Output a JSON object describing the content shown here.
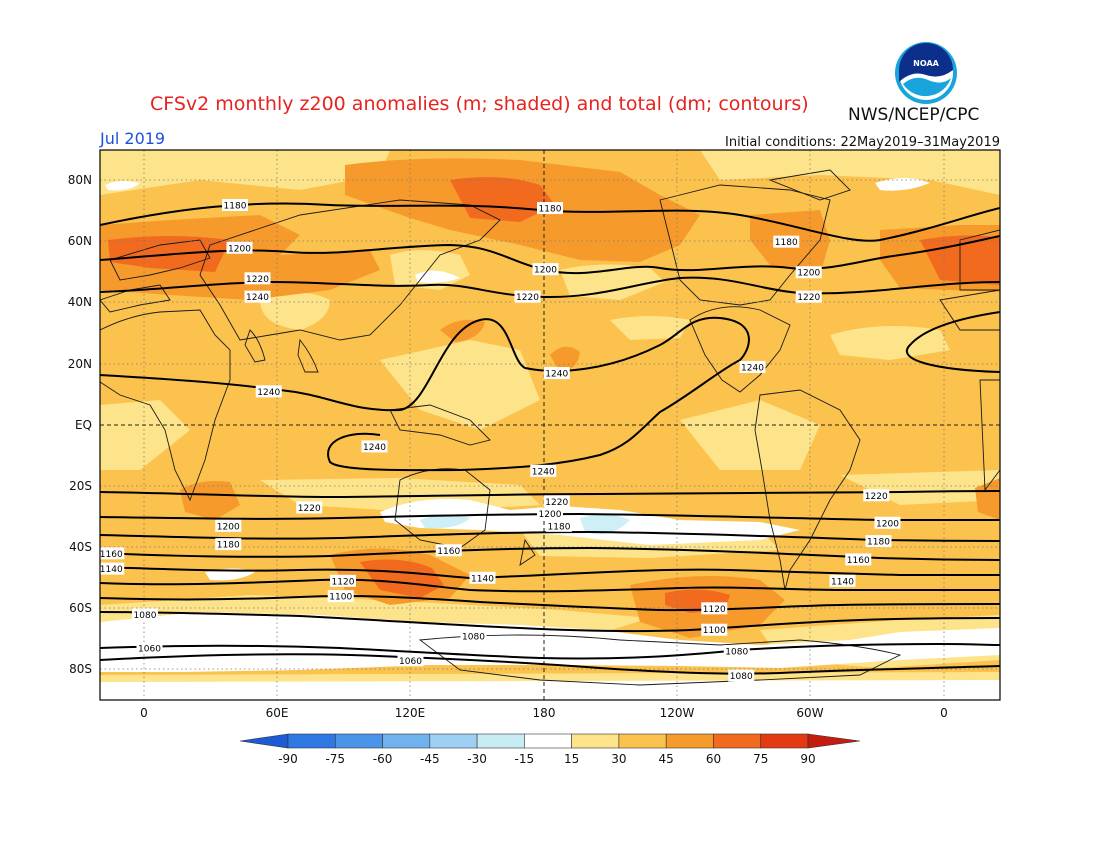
{
  "header": {
    "title": "CFSv2 monthly z200 anomalies (m; shaded) and total (dm; contours)",
    "org": "NWS/NCEP/CPC",
    "logo_text": "NOAA",
    "month": "Jul 2019",
    "initial_conditions": "Initial conditions: 22May2019–31May2019"
  },
  "axes": {
    "lat_ticks": [
      "80N",
      "60N",
      "40N",
      "20N",
      "EQ",
      "20S",
      "40S",
      "60S",
      "80S"
    ],
    "lon_ticks": [
      "0",
      "60E",
      "120E",
      "180",
      "120W",
      "60W",
      "0"
    ]
  },
  "colorbar": {
    "ticks": [
      "-90",
      "-75",
      "-60",
      "-45",
      "-30",
      "-15",
      "15",
      "30",
      "45",
      "60",
      "75",
      "90"
    ],
    "colors": [
      "#1c5ad6",
      "#2e78e4",
      "#4a95ea",
      "#6fb2ef",
      "#9ed0f3",
      "#c8ecf4",
      "#ffffff",
      "#fde48a",
      "#fbc24e",
      "#f79a2c",
      "#f26a1e",
      "#e33a14",
      "#c51c10"
    ]
  },
  "map": {
    "anomaly_colors": {
      "neg15_0": "#cdeff5",
      "pos15": "#fde48a",
      "pos30": "#fbc24e",
      "pos45": "#f79a2c",
      "pos60": "#f26a1e"
    },
    "contour_labels": [
      {
        "text": "1180",
        "lon": 40,
        "lat": 72
      },
      {
        "text": "1180",
        "lon": 180,
        "lat": 71
      },
      {
        "text": "1180",
        "lon": 285,
        "lat": 60
      },
      {
        "text": "1200",
        "lon": 42,
        "lat": 58
      },
      {
        "text": "1200",
        "lon": 178,
        "lat": 51
      },
      {
        "text": "1200",
        "lon": 295,
        "lat": 50
      },
      {
        "text": "1220",
        "lon": 50,
        "lat": 48
      },
      {
        "text": "1220",
        "lon": 170,
        "lat": 42
      },
      {
        "text": "1220",
        "lon": 295,
        "lat": 42
      },
      {
        "text": "1240",
        "lon": 50,
        "lat": 42
      },
      {
        "text": "1240",
        "lon": 183,
        "lat": 17
      },
      {
        "text": "1240",
        "lon": 270,
        "lat": 19
      },
      {
        "text": "1240",
        "lon": 55,
        "lat": 11
      },
      {
        "text": "1240",
        "lon": 102,
        "lat": -7
      },
      {
        "text": "1240",
        "lon": 177,
        "lat": -15
      },
      {
        "text": "1220",
        "lon": 73,
        "lat": -27
      },
      {
        "text": "1220",
        "lon": 183,
        "lat": -25
      },
      {
        "text": "1220",
        "lon": 325,
        "lat": -23
      },
      {
        "text": "1200",
        "lon": 37,
        "lat": -33
      },
      {
        "text": "1200",
        "lon": 180,
        "lat": -29
      },
      {
        "text": "1200",
        "lon": 330,
        "lat": -32
      },
      {
        "text": "1180",
        "lon": 37,
        "lat": -39
      },
      {
        "text": "1180",
        "lon": 184,
        "lat": -33
      },
      {
        "text": "1180",
        "lon": 326,
        "lat": -38
      },
      {
        "text": "1160",
        "lon": -15,
        "lat": -42
      },
      {
        "text": "1160",
        "lon": 135,
        "lat": -41
      },
      {
        "text": "1160",
        "lon": 317,
        "lat": -44
      },
      {
        "text": "1140",
        "lon": -15,
        "lat": -47
      },
      {
        "text": "1140",
        "lon": 150,
        "lat": -50
      },
      {
        "text": "1140",
        "lon": 310,
        "lat": -51
      },
      {
        "text": "1120",
        "lon": 88,
        "lat": -51
      },
      {
        "text": "1120",
        "lon": 253,
        "lat": -60
      },
      {
        "text": "1100",
        "lon": 87,
        "lat": -56
      },
      {
        "text": "1100",
        "lon": 253,
        "lat": -67
      },
      {
        "text": "1080",
        "lon": 0,
        "lat": -62
      },
      {
        "text": "1080",
        "lon": 146,
        "lat": -69
      },
      {
        "text": "1080",
        "lon": 263,
        "lat": -74
      },
      {
        "text": "1080",
        "lon": 265,
        "lat": -82
      },
      {
        "text": "1060",
        "lon": 2,
        "lat": -73
      },
      {
        "text": "1060",
        "lon": 118,
        "lat": -77
      }
    ]
  }
}
